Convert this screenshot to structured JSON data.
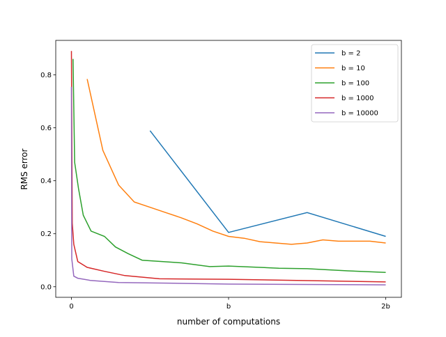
{
  "chart_data": {
    "type": "line",
    "title": "",
    "xlabel": "number of computations",
    "ylabel": "RMS error",
    "xlim": [
      -0.1,
      2.1
    ],
    "ylim": [
      -0.04,
      0.93
    ],
    "x_unit": "b",
    "xticks": [
      {
        "value": 0,
        "label": "0"
      },
      {
        "value": 1,
        "label": "b"
      },
      {
        "value": 2,
        "label": "2b"
      }
    ],
    "yticks": [
      {
        "value": 0.0,
        "label": "0.0"
      },
      {
        "value": 0.2,
        "label": "0.2"
      },
      {
        "value": 0.4,
        "label": "0.4"
      },
      {
        "value": 0.6,
        "label": "0.6"
      },
      {
        "value": 0.8,
        "label": "0.8"
      }
    ],
    "grid": false,
    "legend_position": "top-right",
    "series": [
      {
        "name": "b = 2",
        "color": "#1f77b4",
        "x": [
          0.5,
          1.0,
          1.5,
          2.0
        ],
        "y": [
          0.589,
          0.205,
          0.28,
          0.19
        ]
      },
      {
        "name": "b = 10",
        "color": "#ff7f0e",
        "x": [
          0.1,
          0.2,
          0.3,
          0.4,
          0.5,
          0.6,
          0.7,
          0.8,
          0.9,
          1.0,
          1.1,
          1.2,
          1.3,
          1.4,
          1.5,
          1.6,
          1.7,
          1.8,
          1.9,
          2.0
        ],
        "y": [
          0.784,
          0.515,
          0.384,
          0.32,
          0.3,
          0.28,
          0.26,
          0.237,
          0.21,
          0.19,
          0.183,
          0.17,
          0.165,
          0.16,
          0.165,
          0.177,
          0.172,
          0.172,
          0.172,
          0.165
        ]
      },
      {
        "name": "b = 100",
        "color": "#2ca02c",
        "x": [
          0.01,
          0.02,
          0.045,
          0.075,
          0.125,
          0.21,
          0.28,
          0.36,
          0.45,
          0.7,
          0.88,
          1.0,
          1.32,
          1.5,
          1.76,
          2.0
        ],
        "y": [
          0.86,
          0.47,
          0.37,
          0.27,
          0.21,
          0.19,
          0.15,
          0.125,
          0.1,
          0.09,
          0.076,
          0.078,
          0.07,
          0.068,
          0.06,
          0.054
        ]
      },
      {
        "name": "b = 1000",
        "color": "#d62728",
        "x": [
          0.0,
          0.005,
          0.015,
          0.04,
          0.1,
          0.21,
          0.34,
          0.56,
          1.0,
          1.5,
          2.0
        ],
        "y": [
          0.89,
          0.24,
          0.16,
          0.095,
          0.073,
          0.058,
          0.042,
          0.03,
          0.028,
          0.023,
          0.018
        ]
      },
      {
        "name": "b = 10000",
        "color": "#9467bd",
        "x": [
          0.0,
          0.002,
          0.015,
          0.04,
          0.12,
          0.3,
          0.65,
          1.0,
          2.0
        ],
        "y": [
          0.755,
          0.105,
          0.04,
          0.032,
          0.024,
          0.016,
          0.013,
          0.01,
          0.007
        ]
      }
    ]
  }
}
